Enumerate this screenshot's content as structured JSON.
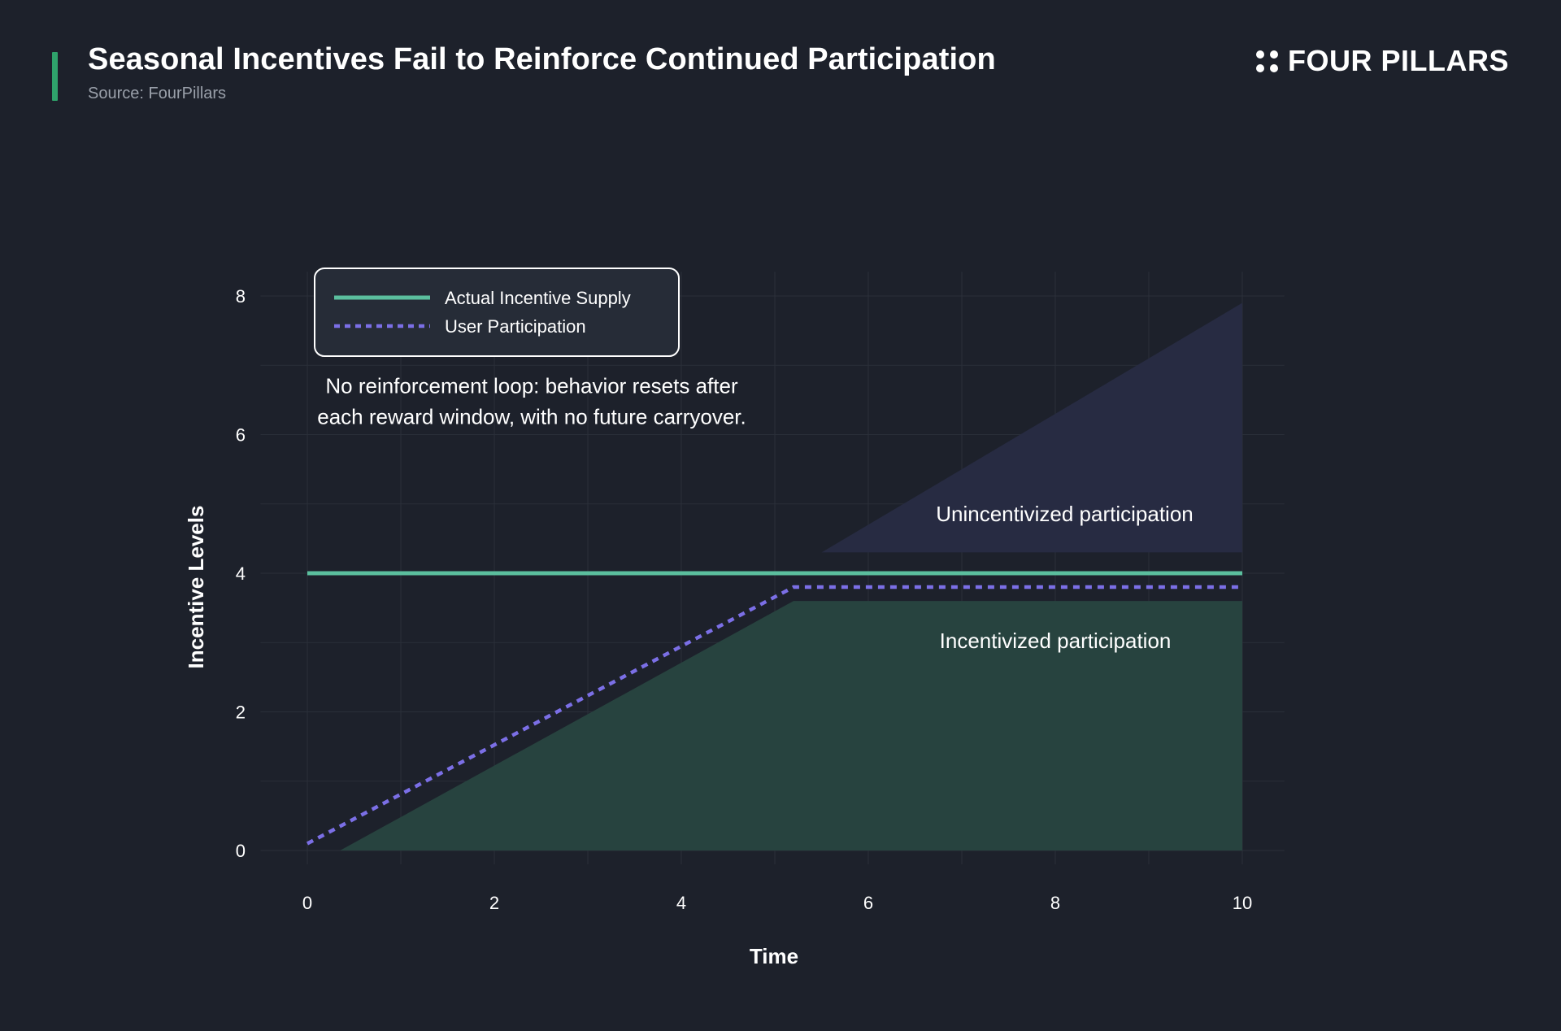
{
  "header": {
    "title": "Seasonal Incentives Fail to Reinforce Continued Participation",
    "source": "Source: FourPillars",
    "brand": "FOUR PILLARS",
    "brand_icon": "four-dots-icon",
    "accent_color": "#2fa36b"
  },
  "chart_data": {
    "type": "line",
    "xlabel": "Time",
    "ylabel": "Incentive Levels",
    "xlim": [
      0,
      10
    ],
    "ylim": [
      0,
      8
    ],
    "xticks": [
      0,
      2,
      4,
      6,
      8,
      10
    ],
    "yticks": [
      0,
      2,
      4,
      6,
      8
    ],
    "grid": true,
    "legend_position": "top-left",
    "series": [
      {
        "name": "Actual Incentive Supply",
        "style": "solid",
        "color": "#5bbf9e",
        "x": [
          0,
          10
        ],
        "y": [
          4,
          4
        ]
      },
      {
        "name": "User Participation",
        "style": "dotted",
        "color": "#7b6fe6",
        "x": [
          0,
          5.2,
          10
        ],
        "y": [
          0.1,
          3.8,
          3.8
        ]
      }
    ],
    "regions": [
      {
        "label": "Incentivized participation",
        "color": "#27433f",
        "x": [
          0.35,
          5.2,
          10,
          10
        ],
        "y": [
          0,
          3.6,
          3.6,
          0
        ]
      },
      {
        "label": "Unincentivized participation",
        "color": "#272b42",
        "x": [
          5.5,
          10,
          10
        ],
        "y": [
          4.3,
          7.9,
          4.3
        ]
      }
    ],
    "annotations": [
      {
        "lines": [
          "No reinforcement loop: behavior resets after",
          "each reward window, with no future carryover."
        ],
        "x": 2.4,
        "y": 6.6
      },
      {
        "text": "Unincentivized participation",
        "x": 8.1,
        "y": 4.75
      },
      {
        "text": "Incentivized participation",
        "x": 8.0,
        "y": 2.92
      }
    ]
  }
}
